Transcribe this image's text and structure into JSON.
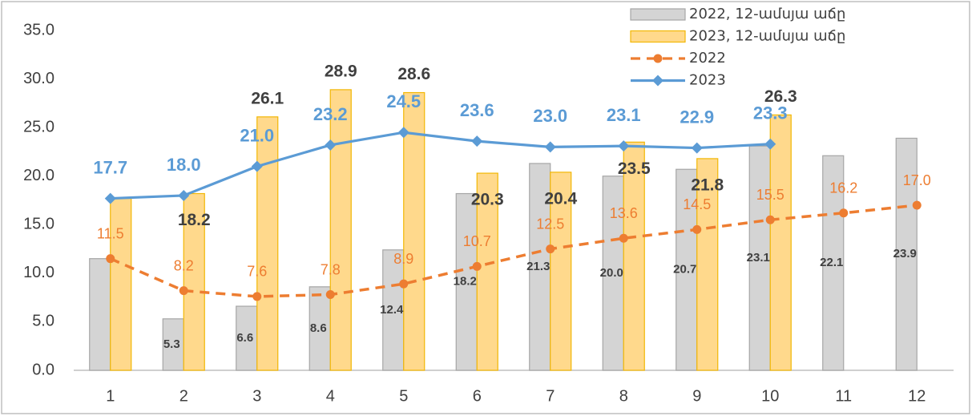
{
  "chart_data": {
    "type": "combo",
    "categories": [
      "1",
      "2",
      "3",
      "4",
      "5",
      "6",
      "7",
      "8",
      "9",
      "10",
      "11",
      "12"
    ],
    "ylim": [
      0,
      35
    ],
    "yticks": [
      {
        "value": 0,
        "label": "0.0"
      },
      {
        "value": 5,
        "label": "5.0"
      },
      {
        "value": 10,
        "label": "10.0"
      },
      {
        "value": 15,
        "label": "15.0"
      },
      {
        "value": 20,
        "label": "20.0"
      },
      {
        "value": 25,
        "label": "25.0"
      },
      {
        "value": 30,
        "label": "30.0"
      },
      {
        "value": 35,
        "label": "35.0"
      }
    ],
    "grid": false,
    "legend": "top-right",
    "series": [
      {
        "name": "2022, 12-ամսյա աճը",
        "type": "bar",
        "color": "#d4d4d4",
        "stroke": "#a6a6a6",
        "values": [
          11.5,
          5.3,
          6.6,
          8.6,
          12.4,
          18.2,
          21.3,
          20.0,
          20.7,
          23.1,
          22.1,
          23.9
        ],
        "value_labels": [
          null,
          "5.3",
          "6.6",
          "8.6",
          "12.4",
          "18.2",
          "21.3",
          "20.0",
          "20.7",
          "23.1",
          "22.1",
          "23.9"
        ]
      },
      {
        "name": "2023, 12-ամսյա աճը",
        "type": "bar",
        "color": "#ffd98c",
        "stroke": "#f2b705",
        "values": [
          17.7,
          18.2,
          26.1,
          28.9,
          28.6,
          20.3,
          20.4,
          23.5,
          21.8,
          26.3,
          null,
          null
        ],
        "value_labels": [
          null,
          "18.2",
          "26.1",
          "28.9",
          "28.6",
          "20.3",
          "20.4",
          "23.5",
          "21.8",
          "26.3",
          null,
          null
        ]
      },
      {
        "name": "2022",
        "type": "line",
        "line_style": "dashed",
        "marker": "circle",
        "color": "#ed7d31",
        "values": [
          11.5,
          8.2,
          7.6,
          7.8,
          8.9,
          10.7,
          12.5,
          13.6,
          14.5,
          15.5,
          16.2,
          17.0
        ],
        "value_labels": [
          "11.5",
          "8.2",
          "7.6",
          "7.8",
          "8.9",
          "10.7",
          "12.5",
          "13.6",
          "14.5",
          "15.5",
          "16.2",
          "17.0"
        ]
      },
      {
        "name": "2023",
        "type": "line",
        "line_style": "solid",
        "marker": "diamond",
        "color": "#5b9bd5",
        "values": [
          17.7,
          18.0,
          21.0,
          23.2,
          24.5,
          23.6,
          23.0,
          23.1,
          22.9,
          23.3,
          null,
          null
        ],
        "value_labels": [
          "17.7",
          "18.0",
          "21.0",
          "23.2",
          "24.5",
          "23.6",
          "23.0",
          "23.1",
          "22.9",
          "23.3",
          null,
          null
        ]
      }
    ]
  }
}
